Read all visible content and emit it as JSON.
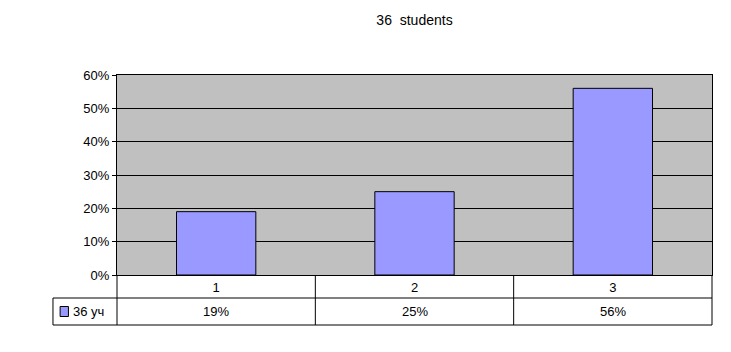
{
  "chart_data": {
    "type": "bar",
    "title": "36  students",
    "categories": [
      "1",
      "2",
      "3"
    ],
    "series": [
      {
        "name": "36 уч",
        "color": "#9999ff",
        "values": [
          19,
          25,
          56
        ],
        "value_labels": [
          "19%",
          "25%",
          "56%"
        ]
      }
    ],
    "ylim": [
      0,
      60
    ],
    "yticks": [
      {
        "value": 0,
        "label": "0%"
      },
      {
        "value": 10,
        "label": "10%"
      },
      {
        "value": 20,
        "label": "20%"
      },
      {
        "value": 30,
        "label": "30%"
      },
      {
        "value": 40,
        "label": "40%"
      },
      {
        "value": 50,
        "label": "50%"
      },
      {
        "value": 60,
        "label": "60%"
      }
    ],
    "grid": true
  }
}
